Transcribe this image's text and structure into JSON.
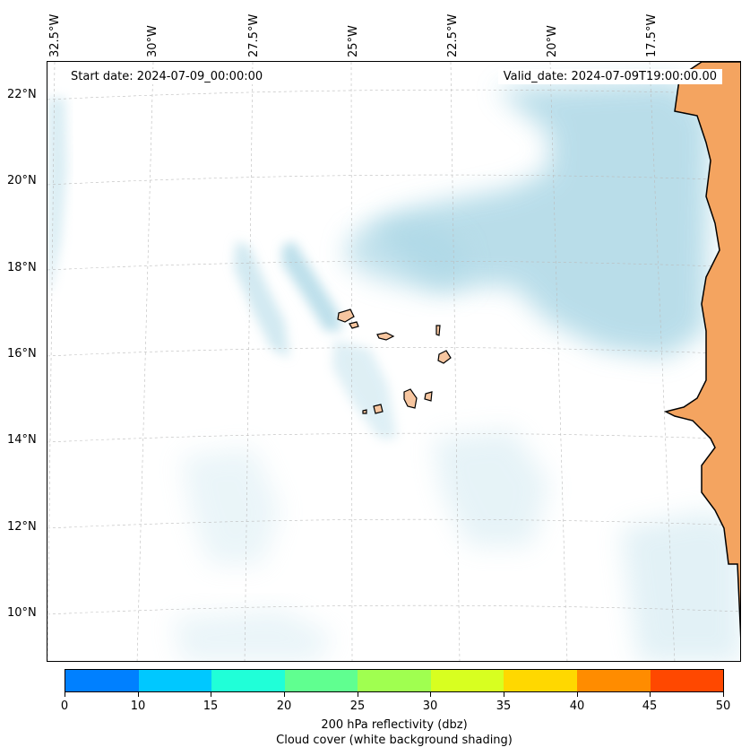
{
  "map": {
    "start_date": "Start date: 2024-07-09_00:00:00",
    "valid_date": "Valid_date: 2024-07-09T19:00:00.00",
    "longitude_labels": [
      "32.5°W",
      "30°W",
      "27.5°W",
      "25°W",
      "22.5°W",
      "20°W",
      "17.5°W"
    ],
    "latitude_labels": [
      "22°N",
      "20°N",
      "18°N",
      "16°N",
      "14°N",
      "12°N",
      "10°N"
    ],
    "land_color": "#f4a460",
    "island_color": "#f7c6a0",
    "cloud_color": "#add8e6"
  },
  "colorbar": {
    "ticks": [
      "0",
      "10",
      "15",
      "20",
      "25",
      "30",
      "35",
      "40",
      "45",
      "50"
    ],
    "colors": [
      "#0080ff",
      "#00c8ff",
      "#20ffd8",
      "#60ff90",
      "#a0ff50",
      "#d8ff20",
      "#ffd800",
      "#ff8c00",
      "#ff4800"
    ],
    "label": "200 hPa reflectivity (dbz)",
    "sublabel": "Cloud cover (white background shading)"
  }
}
